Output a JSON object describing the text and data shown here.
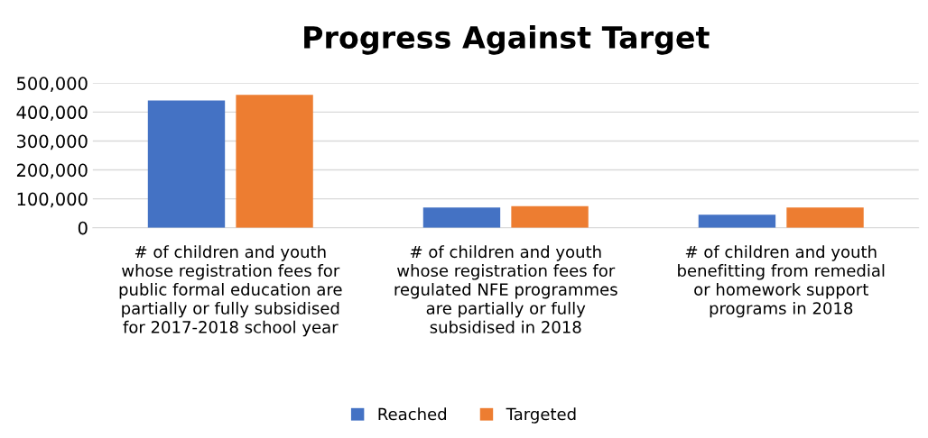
{
  "chart_data": {
    "type": "bar",
    "title": "Progress Against Target",
    "categories": [
      "# of children and youth\nwhose registration fees for\npublic formal education are\npartially or fully subsidised\nfor 2017-2018 school year",
      "# of children and youth\nwhose registration fees for\nregulated NFE programmes\nare partially or fully\nsubsidised in 2018",
      "# of children and youth\nbenefitting from remedial\nor homework support\nprograms in 2018"
    ],
    "series": [
      {
        "name": "Reached",
        "color": "#4472c4",
        "values": [
          440000,
          70000,
          45000
        ]
      },
      {
        "name": "Targeted",
        "color": "#ed7d31",
        "values": [
          460000,
          75000,
          70000
        ]
      }
    ],
    "ylim": [
      0,
      500000
    ],
    "yticks": [
      {
        "value": 0,
        "label": "0"
      },
      {
        "value": 100000,
        "label": "100,000"
      },
      {
        "value": 200000,
        "label": "200,000"
      },
      {
        "value": 300000,
        "label": "300,000"
      },
      {
        "value": 400000,
        "label": "400,000"
      },
      {
        "value": 500000,
        "label": "500,000"
      }
    ],
    "grid": "y",
    "legend": "bottom"
  }
}
